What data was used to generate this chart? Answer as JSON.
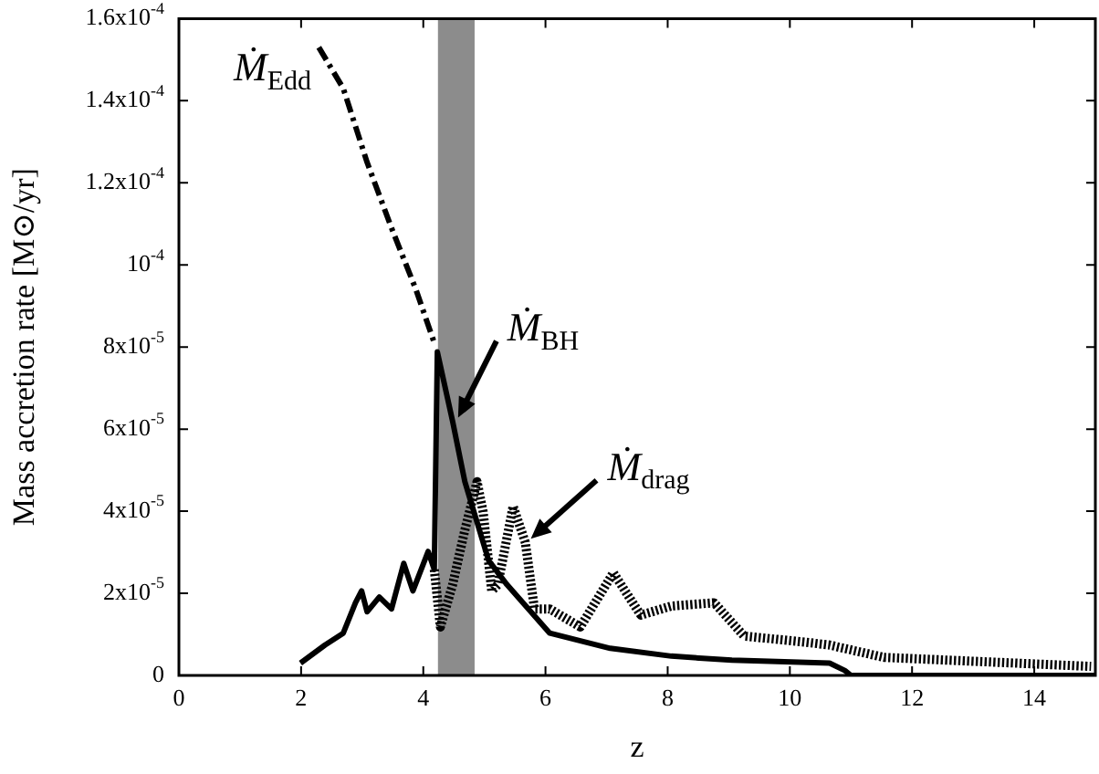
{
  "chart_data": {
    "type": "line",
    "xlabel": "z",
    "ylabel": "Mass accretion rate [M⊙/yr]",
    "xlim": [
      0,
      15
    ],
    "xticks": [
      0,
      2,
      4,
      6,
      8,
      10,
      12,
      14
    ],
    "ylim": [
      0,
      0.00016
    ],
    "yticks": [
      {
        "value": 0,
        "label": "0"
      },
      {
        "value": 2e-05,
        "label": "2x10$^{-5}$"
      },
      {
        "value": 4e-05,
        "label": "4x10$^{-5}$"
      },
      {
        "value": 6e-05,
        "label": "6x10$^{-5}$"
      },
      {
        "value": 8e-05,
        "label": "8x10$^{-5}$"
      },
      {
        "value": 0.0001,
        "label": "10$^{-4}$"
      },
      {
        "value": 0.00012,
        "label": "1.2x10$^{-4}$"
      },
      {
        "value": 0.00014,
        "label": "1.4x10$^{-4}$"
      },
      {
        "value": 0.00016,
        "label": "1.6x10$^{-4}$"
      }
    ],
    "marker": "none",
    "legend": false,
    "series": [
      {
        "color": "#000000",
        "line_style": "dashed",
        "x": [
          2.29,
          2.69,
          3.08,
          3.48,
          3.88,
          4.18
        ],
        "values": [
          0.000153,
          0.000143,
          0.000125,
          0.000109,
          9.4e-05,
          8.1e-05
        ]
      },
      {
        "color": "#000000",
        "line_style": "solid",
        "x": [
          1.99,
          2.39,
          2.69,
          2.89,
          2.99,
          3.08,
          3.28,
          3.48,
          3.68,
          3.83,
          4.08,
          4.18,
          4.23,
          4.48,
          4.68,
          4.98,
          5.07,
          5.37,
          6.07,
          7.06,
          8.06,
          9.05,
          10.65,
          10.9,
          11.0,
          15.0
        ],
        "values": [
          3e-06,
          7.4e-06,
          1.03e-05,
          1.77e-05,
          2.06e-05,
          1.55e-05,
          1.91e-05,
          1.62e-05,
          2.73e-05,
          2.06e-05,
          3.02e-05,
          2.58e-05,
          7.88e-05,
          6.19e-05,
          4.72e-05,
          3.24e-05,
          2.8e-05,
          2.21e-05,
          1.03e-05,
          6.6e-06,
          4.7e-06,
          3.7e-06,
          3e-06,
          1.2e-06,
          0,
          0
        ]
      },
      {
        "color": "#000000",
        "line_style": "dotted",
        "x": [
          4.18,
          4.28,
          4.48,
          4.68,
          4.88,
          4.98,
          5.12,
          5.22,
          5.47,
          5.67,
          5.82,
          6.07,
          6.57,
          7.11,
          7.56,
          8.06,
          8.76,
          9.25,
          10.25,
          10.65,
          11.54,
          14.93
        ],
        "values": [
          2.58e-05,
          1.18e-05,
          2.21e-05,
          3.54e-05,
          4.72e-05,
          3.98e-05,
          2.06e-05,
          2.21e-05,
          4.12e-05,
          3.24e-05,
          1.62e-05,
          1.62e-05,
          1.18e-05,
          2.5e-05,
          1.47e-05,
          1.69e-05,
          1.77e-05,
          9.6e-06,
          8.1e-06,
          7.4e-06,
          4.4e-06,
          2.2e-06
        ]
      }
    ],
    "bands": [
      {
        "axis": "x",
        "from": 4.24,
        "to": 4.84,
        "color": "#8c8c8c"
      }
    ],
    "annotations": [
      {
        "text": "Ṁ$_{Edd}$",
        "x": 2.69,
        "y": 0.000143
      },
      {
        "text": "Ṁ$_{BH}$",
        "x": 4.48,
        "y": 6.19e-05
      },
      {
        "text": "Ṁ$_{drag}$",
        "x": 5.67,
        "y": 3.24e-05
      }
    ]
  }
}
